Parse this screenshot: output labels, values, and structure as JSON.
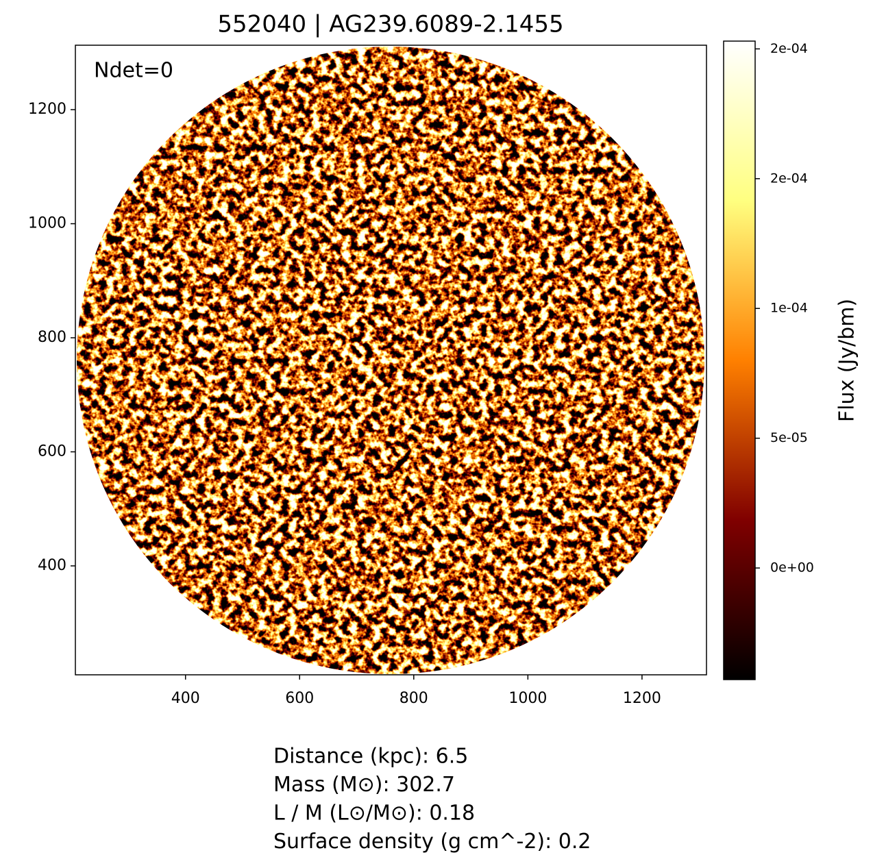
{
  "chart_data": {
    "type": "image",
    "title": "552040 | AG239.6089-2.1455",
    "annotation": "Ndet=0",
    "xlim": [
      207,
      1313
    ],
    "xticks": [
      400,
      600,
      800,
      1000,
      1200
    ],
    "ylim": [
      209,
      1313
    ],
    "yticks": [
      400,
      600,
      800,
      1000,
      1200
    ],
    "colormap": [
      "#000000",
      "#800000",
      "#ff8000",
      "#ffff80",
      "#ffffff"
    ],
    "clim": [
      -4.3e-05,
      0.000203
    ],
    "colorbar_label": "Flux (Jy/bm)",
    "colorbar_ticks": [
      {
        "value": 0,
        "label": "0e+00"
      },
      {
        "value": 5e-05,
        "label": "5e-05"
      },
      {
        "value": 0.0001,
        "label": "1e-04"
      },
      {
        "value": 0.00015,
        "label": "2e-04"
      },
      {
        "value": 0.0002,
        "label": "2e-04"
      }
    ],
    "footer_text": [
      "Distance (kpc): 6.5",
      "Mass (M⊙): 302.7",
      "L / M (L⊙/M⊙): 0.18",
      "Surface density (g cm^-2): 0.2"
    ]
  }
}
